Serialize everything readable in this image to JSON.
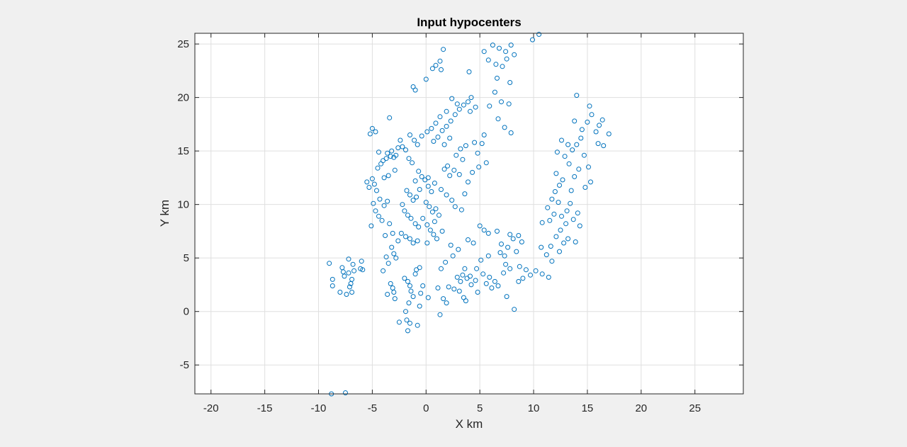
{
  "figure": {
    "background": "#f0f0f0",
    "axes_background": "#ffffff",
    "marker_color": "#0072bd",
    "grid_color": "#dfdfdf"
  },
  "chart_data": {
    "type": "scatter",
    "title": "Input hypocenters",
    "xlabel": "X km",
    "ylabel": "Y km",
    "xlim": [
      -21.5,
      29.5
    ],
    "ylim": [
      -7.7,
      26.0
    ],
    "xticks": [
      -20,
      -15,
      -10,
      -5,
      0,
      5,
      10,
      15,
      20,
      25
    ],
    "yticks": [
      -5,
      0,
      5,
      10,
      15,
      20,
      25
    ],
    "xtick_labels": [
      "-20",
      "-15",
      "-10",
      "-5",
      "0",
      "5",
      "10",
      "15",
      "20",
      "25"
    ],
    "ytick_labels": [
      "-5",
      "0",
      "5",
      "10",
      "15",
      "20",
      "25"
    ],
    "grid": true,
    "marker": "open-circle",
    "series": [
      {
        "points": [
          [
            -9.0,
            4.5
          ],
          [
            -8.7,
            3.0
          ],
          [
            -8.7,
            2.4
          ],
          [
            -8.0,
            1.8
          ],
          [
            -7.8,
            4.1
          ],
          [
            -7.7,
            3.7
          ],
          [
            -7.6,
            3.3
          ],
          [
            -7.4,
            1.6
          ],
          [
            -7.2,
            4.9
          ],
          [
            -7.2,
            3.6
          ],
          [
            -7.1,
            2.3
          ],
          [
            -7.0,
            2.6
          ],
          [
            -6.9,
            1.8
          ],
          [
            -6.9,
            3.0
          ],
          [
            -6.8,
            4.4
          ],
          [
            -6.7,
            3.8
          ],
          [
            -6.1,
            4.0
          ],
          [
            -5.9,
            3.9
          ],
          [
            -6.0,
            4.7
          ],
          [
            -8.8,
            -7.7
          ],
          [
            -7.5,
            -7.6
          ],
          [
            -5.5,
            12.1
          ],
          [
            -5.3,
            11.6
          ],
          [
            -5.0,
            12.4
          ],
          [
            -4.8,
            11.9
          ],
          [
            -4.6,
            11.3
          ],
          [
            -4.3,
            10.5
          ],
          [
            -4.9,
            10.1
          ],
          [
            -5.1,
            8.0
          ],
          [
            -4.7,
            9.4
          ],
          [
            -4.4,
            8.9
          ],
          [
            -4.1,
            8.5
          ],
          [
            -3.9,
            9.9
          ],
          [
            -3.6,
            10.3
          ],
          [
            -3.4,
            8.2
          ],
          [
            -3.8,
            7.1
          ],
          [
            -3.1,
            7.3
          ],
          [
            -3.5,
            12.7
          ],
          [
            -3.9,
            12.5
          ],
          [
            -4.5,
            13.4
          ],
          [
            -4.2,
            13.8
          ],
          [
            -4.0,
            14.1
          ],
          [
            -3.7,
            14.3
          ],
          [
            -3.3,
            14.5
          ],
          [
            -3.0,
            14.4
          ],
          [
            -4.4,
            14.9
          ],
          [
            -3.6,
            14.8
          ],
          [
            -3.2,
            15.0
          ],
          [
            -2.8,
            14.6
          ],
          [
            -2.9,
            13.2
          ],
          [
            -4.7,
            16.8
          ],
          [
            -5.0,
            17.1
          ],
          [
            -5.2,
            16.6
          ],
          [
            -3.4,
            18.1
          ],
          [
            -2.4,
            16.0
          ],
          [
            -2.2,
            15.4
          ],
          [
            -1.9,
            15.1
          ],
          [
            -2.6,
            15.3
          ],
          [
            -1.5,
            16.5
          ],
          [
            -1.1,
            16.0
          ],
          [
            -0.8,
            15.6
          ],
          [
            -1.6,
            14.3
          ],
          [
            -1.3,
            13.9
          ],
          [
            -1.0,
            12.2
          ],
          [
            -1.8,
            11.3
          ],
          [
            -1.5,
            10.9
          ],
          [
            -1.2,
            10.4
          ],
          [
            -0.9,
            10.7
          ],
          [
            -0.6,
            11.4
          ],
          [
            -2.2,
            10.0
          ],
          [
            -2.0,
            9.4
          ],
          [
            -1.7,
            9.0
          ],
          [
            -1.4,
            8.7
          ],
          [
            -1.0,
            8.2
          ],
          [
            -0.7,
            7.9
          ],
          [
            -2.3,
            7.3
          ],
          [
            -1.9,
            7.0
          ],
          [
            -1.5,
            6.8
          ],
          [
            -1.2,
            6.4
          ],
          [
            -0.8,
            6.6
          ],
          [
            -2.6,
            6.6
          ],
          [
            -3.2,
            6.0
          ],
          [
            -3.0,
            5.4
          ],
          [
            -2.8,
            5.0
          ],
          [
            -3.7,
            5.1
          ],
          [
            -3.5,
            4.5
          ],
          [
            -4.0,
            3.8
          ],
          [
            -3.3,
            2.6
          ],
          [
            -3.1,
            2.2
          ],
          [
            -3.0,
            1.8
          ],
          [
            -2.9,
            1.2
          ],
          [
            -3.6,
            1.6
          ],
          [
            -2.0,
            3.1
          ],
          [
            -1.7,
            2.8
          ],
          [
            -1.5,
            2.4
          ],
          [
            -1.4,
            1.9
          ],
          [
            -1.2,
            1.4
          ],
          [
            -1.6,
            0.8
          ],
          [
            -1.9,
            0.0
          ],
          [
            -1.8,
            -0.8
          ],
          [
            -1.5,
            -1.1
          ],
          [
            -2.5,
            -1.0
          ],
          [
            -1.7,
            -1.8
          ],
          [
            -0.8,
            -1.3
          ],
          [
            -0.6,
            0.5
          ],
          [
            -0.5,
            1.7
          ],
          [
            -0.3,
            2.4
          ],
          [
            0.2,
            1.3
          ],
          [
            -0.9,
            3.9
          ],
          [
            -0.6,
            4.1
          ],
          [
            -1.0,
            3.5
          ],
          [
            -0.7,
            13.1
          ],
          [
            -0.4,
            12.6
          ],
          [
            -0.1,
            12.3
          ],
          [
            0.2,
            11.7
          ],
          [
            0.5,
            11.2
          ],
          [
            0.0,
            10.2
          ],
          [
            0.3,
            9.8
          ],
          [
            0.6,
            9.3
          ],
          [
            0.9,
            9.6
          ],
          [
            1.2,
            9.0
          ],
          [
            -0.3,
            8.7
          ],
          [
            0.1,
            8.1
          ],
          [
            0.4,
            7.6
          ],
          [
            0.7,
            7.2
          ],
          [
            1.0,
            6.8
          ],
          [
            0.8,
            8.4
          ],
          [
            0.1,
            6.4
          ],
          [
            1.5,
            7.5
          ],
          [
            2.3,
            6.2
          ],
          [
            1.8,
            4.6
          ],
          [
            1.4,
            4.0
          ],
          [
            1.1,
            2.2
          ],
          [
            1.6,
            1.2
          ],
          [
            1.9,
            0.8
          ],
          [
            1.3,
            -0.3
          ],
          [
            2.1,
            2.3
          ],
          [
            2.6,
            2.1
          ],
          [
            3.1,
            1.9
          ],
          [
            3.5,
            1.3
          ],
          [
            3.7,
            1.0
          ],
          [
            3.2,
            2.8
          ],
          [
            2.9,
            3.2
          ],
          [
            3.4,
            3.4
          ],
          [
            3.8,
            3.1
          ],
          [
            4.1,
            3.3
          ],
          [
            3.6,
            4.0
          ],
          [
            2.5,
            5.2
          ],
          [
            3.0,
            5.8
          ],
          [
            3.9,
            6.7
          ],
          [
            4.4,
            6.4
          ],
          [
            0.2,
            12.5
          ],
          [
            0.8,
            12.0
          ],
          [
            1.4,
            11.4
          ],
          [
            1.9,
            10.9
          ],
          [
            2.4,
            10.4
          ],
          [
            2.7,
            9.8
          ],
          [
            3.3,
            9.5
          ],
          [
            3.6,
            11.0
          ],
          [
            2.2,
            12.7
          ],
          [
            1.7,
            13.3
          ],
          [
            2.0,
            13.6
          ],
          [
            2.6,
            13.2
          ],
          [
            3.1,
            12.8
          ],
          [
            3.9,
            12.1
          ],
          [
            4.3,
            13.0
          ],
          [
            4.9,
            13.5
          ],
          [
            3.4,
            14.2
          ],
          [
            2.8,
            14.6
          ],
          [
            3.2,
            15.2
          ],
          [
            3.7,
            15.5
          ],
          [
            4.5,
            15.8
          ],
          [
            5.2,
            15.7
          ],
          [
            5.6,
            13.9
          ],
          [
            4.8,
            14.8
          ],
          [
            1.1,
            16.3
          ],
          [
            1.5,
            16.9
          ],
          [
            1.9,
            17.3
          ],
          [
            2.3,
            17.8
          ],
          [
            2.7,
            18.4
          ],
          [
            3.1,
            18.9
          ],
          [
            3.5,
            19.3
          ],
          [
            3.9,
            19.6
          ],
          [
            4.2,
            20.0
          ],
          [
            4.6,
            19.1
          ],
          [
            2.9,
            19.4
          ],
          [
            2.4,
            19.9
          ],
          [
            1.9,
            18.7
          ],
          [
            1.3,
            18.2
          ],
          [
            0.9,
            17.6
          ],
          [
            0.5,
            17.1
          ],
          [
            0.1,
            16.8
          ],
          [
            -0.4,
            16.4
          ],
          [
            0.7,
            15.9
          ],
          [
            1.7,
            15.6
          ],
          [
            2.2,
            16.2
          ],
          [
            0.6,
            22.7
          ],
          [
            1.3,
            23.4
          ],
          [
            1.6,
            24.5
          ],
          [
            1.4,
            22.6
          ],
          [
            0.9,
            23.0
          ],
          [
            -1.2,
            21.0
          ],
          [
            -1.0,
            20.7
          ],
          [
            0.0,
            21.7
          ],
          [
            4.0,
            22.4
          ],
          [
            5.4,
            24.3
          ],
          [
            6.2,
            24.9
          ],
          [
            6.8,
            24.6
          ],
          [
            7.4,
            24.3
          ],
          [
            7.9,
            24.9
          ],
          [
            8.2,
            24.0
          ],
          [
            5.8,
            23.5
          ],
          [
            6.5,
            23.1
          ],
          [
            7.1,
            22.9
          ],
          [
            7.5,
            23.6
          ],
          [
            6.6,
            21.8
          ],
          [
            7.8,
            21.4
          ],
          [
            6.4,
            20.5
          ],
          [
            5.9,
            19.2
          ],
          [
            7.0,
            19.6
          ],
          [
            7.7,
            19.4
          ],
          [
            6.7,
            18.0
          ],
          [
            7.3,
            17.2
          ],
          [
            7.9,
            16.7
          ],
          [
            5.4,
            16.5
          ],
          [
            4.1,
            18.7
          ],
          [
            9.9,
            25.4
          ],
          [
            10.5,
            25.9
          ],
          [
            5.0,
            8.0
          ],
          [
            5.4,
            7.6
          ],
          [
            5.8,
            7.3
          ],
          [
            6.6,
            7.5
          ],
          [
            7.0,
            6.3
          ],
          [
            7.6,
            6.0
          ],
          [
            8.1,
            6.8
          ],
          [
            8.6,
            7.1
          ],
          [
            8.9,
            6.5
          ],
          [
            8.4,
            5.6
          ],
          [
            7.3,
            5.2
          ],
          [
            6.9,
            5.5
          ],
          [
            5.8,
            5.2
          ],
          [
            5.1,
            4.8
          ],
          [
            4.7,
            4.0
          ],
          [
            5.3,
            3.5
          ],
          [
            5.9,
            3.2
          ],
          [
            6.4,
            2.8
          ],
          [
            6.1,
            2.2
          ],
          [
            5.6,
            2.6
          ],
          [
            4.6,
            2.9
          ],
          [
            4.2,
            2.5
          ],
          [
            4.8,
            1.8
          ],
          [
            7.4,
            4.4
          ],
          [
            7.8,
            4.0
          ],
          [
            7.2,
            3.6
          ],
          [
            8.7,
            4.2
          ],
          [
            9.3,
            3.9
          ],
          [
            9.0,
            3.1
          ],
          [
            8.6,
            2.8
          ],
          [
            7.5,
            1.4
          ],
          [
            8.2,
            0.2
          ],
          [
            9.7,
            3.4
          ],
          [
            10.2,
            3.8
          ],
          [
            10.8,
            3.5
          ],
          [
            11.4,
            3.2
          ],
          [
            6.7,
            2.4
          ],
          [
            7.8,
            7.2
          ],
          [
            10.8,
            8.3
          ],
          [
            11.3,
            9.7
          ],
          [
            11.7,
            10.5
          ],
          [
            12.0,
            11.2
          ],
          [
            12.4,
            11.8
          ],
          [
            12.7,
            12.3
          ],
          [
            12.3,
            10.2
          ],
          [
            11.9,
            9.1
          ],
          [
            11.5,
            8.5
          ],
          [
            12.6,
            8.9
          ],
          [
            13.1,
            9.4
          ],
          [
            13.4,
            10.1
          ],
          [
            13.0,
            8.2
          ],
          [
            12.5,
            7.6
          ],
          [
            12.1,
            7.0
          ],
          [
            12.8,
            6.4
          ],
          [
            13.2,
            6.8
          ],
          [
            12.4,
            5.6
          ],
          [
            11.6,
            6.1
          ],
          [
            11.2,
            5.3
          ],
          [
            11.7,
            4.7
          ],
          [
            10.7,
            6.0
          ],
          [
            13.9,
            6.5
          ],
          [
            14.3,
            8.0
          ],
          [
            14.1,
            9.2
          ],
          [
            13.7,
            8.6
          ],
          [
            13.5,
            11.3
          ],
          [
            13.8,
            12.6
          ],
          [
            14.2,
            13.3
          ],
          [
            13.3,
            13.8
          ],
          [
            12.9,
            14.5
          ],
          [
            13.6,
            15.1
          ],
          [
            14.0,
            15.6
          ],
          [
            14.7,
            14.6
          ],
          [
            15.1,
            13.5
          ],
          [
            15.3,
            12.1
          ],
          [
            14.8,
            11.6
          ],
          [
            12.1,
            12.9
          ],
          [
            12.2,
            14.9
          ],
          [
            14.5,
            17.0
          ],
          [
            15.0,
            17.7
          ],
          [
            15.4,
            18.4
          ],
          [
            15.8,
            16.8
          ],
          [
            16.1,
            17.4
          ],
          [
            16.4,
            17.9
          ],
          [
            16.0,
            15.7
          ],
          [
            16.5,
            15.5
          ],
          [
            17.0,
            16.6
          ],
          [
            15.2,
            19.2
          ],
          [
            14.0,
            20.2
          ],
          [
            13.8,
            17.8
          ],
          [
            14.4,
            16.2
          ],
          [
            13.2,
            15.6
          ],
          [
            12.6,
            16.0
          ]
        ]
      }
    ]
  }
}
